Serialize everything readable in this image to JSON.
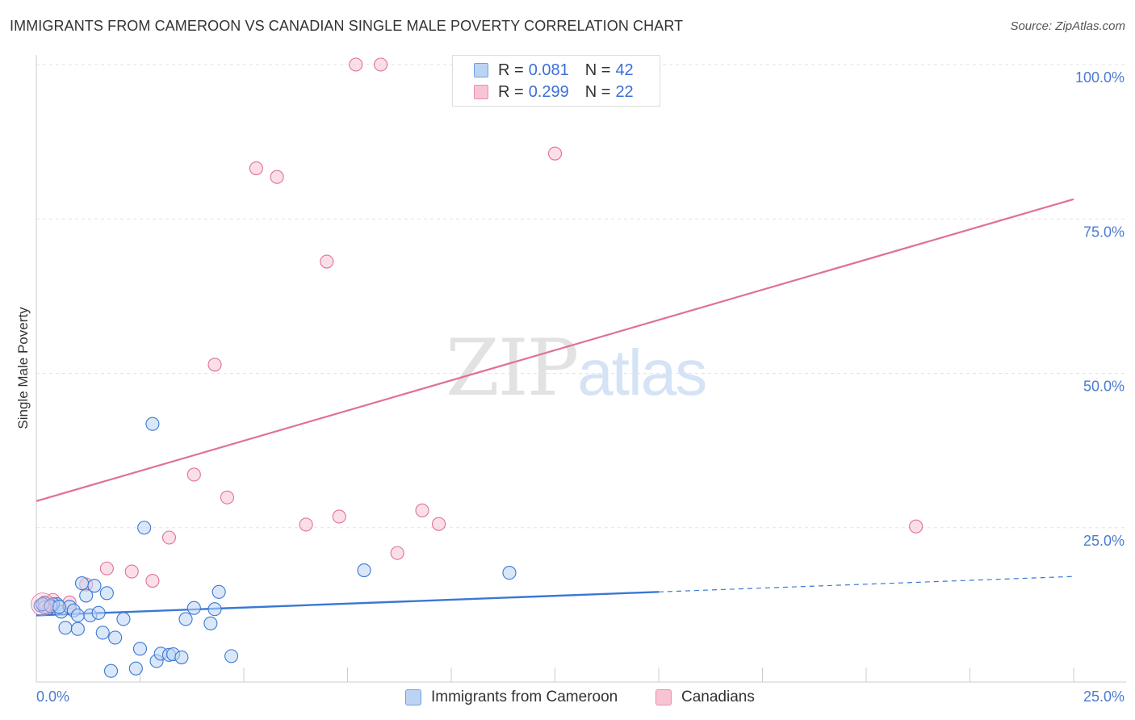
{
  "title": "IMMIGRANTS FROM CAMEROON VS CANADIAN SINGLE MALE POVERTY CORRELATION CHART",
  "source": "Source: ZipAtlas.com",
  "watermark": {
    "zip": "ZIP",
    "atlas": "atlas"
  },
  "colors": {
    "blue": "#3a78d4",
    "blue_fill": "#bcd4f4",
    "pink": "#e07099",
    "pink_fill": "#f8c4d4",
    "tick_text": "#4a7bd0",
    "grid": "#e3e3e3"
  },
  "legend": {
    "series1": {
      "r_label": "R =",
      "r_value": "0.081",
      "n_label": "N =",
      "n_value": "42"
    },
    "series2": {
      "r_label": "R =",
      "r_value": "0.299",
      "n_label": "N =",
      "n_value": "22"
    }
  },
  "bottom_legend": {
    "series1": "Immigrants from Cameroon",
    "series2": "Canadians"
  },
  "chart_data": {
    "type": "scatter",
    "title": "IMMIGRANTS FROM CAMEROON VS CANADIAN SINGLE MALE POVERTY CORRELATION CHART",
    "xlabel": "",
    "ylabel": "Single Male Poverty",
    "xlim": [
      0,
      25
    ],
    "ylim": [
      0,
      100
    ],
    "x_tick_labels": [
      "0.0%",
      "25.0%"
    ],
    "y_ticks": [
      25,
      50,
      75,
      100
    ],
    "y_tick_labels": [
      "25.0%",
      "50.0%",
      "75.0%",
      "100.0%"
    ],
    "grid": true,
    "series": [
      {
        "name": "Immigrants from Cameroon",
        "color": "#3a78d4",
        "R": 0.081,
        "N": 42,
        "trend": {
          "x0": 0,
          "y0": 10.8,
          "x1": 15,
          "y1": 14.6,
          "dash_to_x": 25,
          "dash_to_y": 17.1
        },
        "points": [
          [
            0.1,
            12.4
          ],
          [
            0.2,
            12.8
          ],
          [
            0.3,
            12.0
          ],
          [
            0.5,
            12.6
          ],
          [
            0.6,
            11.4
          ],
          [
            0.8,
            12.2
          ],
          [
            0.9,
            11.6
          ],
          [
            1.0,
            10.8
          ],
          [
            0.7,
            8.8
          ],
          [
            1.0,
            8.6
          ],
          [
            1.2,
            14.0
          ],
          [
            1.1,
            16.0
          ],
          [
            1.4,
            15.6
          ],
          [
            1.3,
            10.8
          ],
          [
            1.5,
            11.2
          ],
          [
            1.7,
            14.4
          ],
          [
            1.6,
            8.0
          ],
          [
            1.9,
            7.2
          ],
          [
            2.1,
            10.2
          ],
          [
            1.8,
            1.8
          ],
          [
            2.4,
            2.2
          ],
          [
            2.5,
            5.4
          ],
          [
            2.9,
            3.4
          ],
          [
            3.0,
            4.6
          ],
          [
            3.2,
            4.4
          ],
          [
            3.3,
            4.5
          ],
          [
            3.5,
            4.0
          ],
          [
            3.8,
            12.0
          ],
          [
            3.6,
            10.2
          ],
          [
            4.3,
            11.8
          ],
          [
            4.2,
            9.5
          ],
          [
            4.4,
            14.6
          ],
          [
            4.7,
            4.2
          ],
          [
            2.6,
            25.0
          ],
          [
            2.8,
            41.8
          ],
          [
            7.9,
            18.1
          ],
          [
            11.4,
            17.7
          ],
          [
            0.4,
            12.6
          ],
          [
            0.2,
            12.1
          ],
          [
            0.15,
            12.6
          ],
          [
            0.35,
            12.3
          ],
          [
            0.55,
            12.2
          ]
        ]
      },
      {
        "name": "Canadians",
        "color": "#e07099",
        "R": 0.299,
        "N": 22,
        "trend": {
          "x0": 0,
          "y0": 29.3,
          "x1": 25,
          "y1": 78.2
        },
        "points": [
          [
            0.2,
            12.9
          ],
          [
            0.4,
            13.3
          ],
          [
            0.8,
            12.9
          ],
          [
            1.2,
            15.8
          ],
          [
            1.7,
            18.4
          ],
          [
            2.3,
            17.9
          ],
          [
            2.8,
            16.4
          ],
          [
            3.2,
            23.4
          ],
          [
            3.8,
            33.6
          ],
          [
            4.3,
            51.4
          ],
          [
            4.6,
            29.9
          ],
          [
            5.3,
            83.2
          ],
          [
            5.8,
            81.8
          ],
          [
            6.5,
            25.5
          ],
          [
            7.0,
            68.1
          ],
          [
            7.3,
            26.8
          ],
          [
            7.7,
            100.0
          ],
          [
            8.3,
            100.0
          ],
          [
            8.7,
            20.9
          ],
          [
            9.3,
            27.8
          ],
          [
            9.7,
            25.6
          ],
          [
            12.5,
            85.6
          ]
        ],
        "extra_points": [
          [
            21.2,
            25.2
          ]
        ]
      }
    ]
  }
}
